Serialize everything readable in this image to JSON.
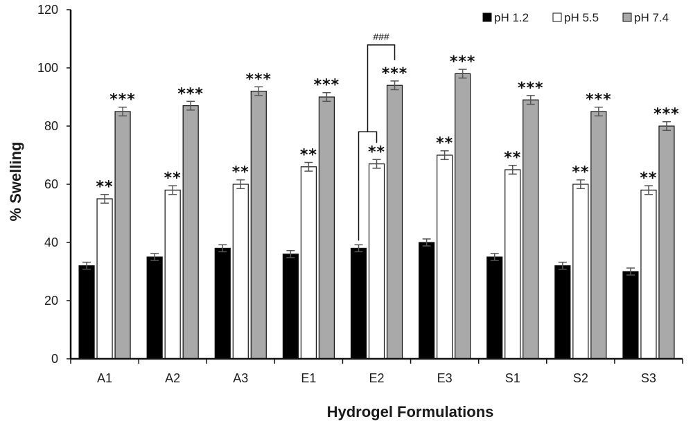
{
  "chart_data": {
    "type": "bar",
    "title": "",
    "xlabel": "Hydrogel Formulations",
    "ylabel": "% Swelling",
    "ylim": [
      0,
      120
    ],
    "yticks": [
      0,
      20,
      40,
      60,
      80,
      100,
      120
    ],
    "categories": [
      "A1",
      "A2",
      "A3",
      "E1",
      "E2",
      "E3",
      "S1",
      "S2",
      "S3"
    ],
    "legend_position": "top-right",
    "series": [
      {
        "name": "pH 1.2",
        "color": "#000000",
        "values": [
          32,
          35,
          38,
          36,
          38,
          40,
          35,
          32,
          30
        ],
        "errors": [
          1.2,
          1.2,
          1.2,
          1.2,
          1.2,
          1.2,
          1.2,
          1.2,
          1.2
        ]
      },
      {
        "name": "pH 5.5",
        "color": "#ffffff",
        "values": [
          55,
          58,
          60,
          66,
          67,
          70,
          65,
          60,
          58
        ],
        "errors": [
          1.5,
          1.5,
          1.5,
          1.5,
          1.5,
          1.5,
          1.5,
          1.5,
          1.5
        ],
        "annotation": "**"
      },
      {
        "name": "pH 7.4",
        "color": "#a9a9a9",
        "values": [
          85,
          87,
          92,
          90,
          94,
          98,
          89,
          85,
          80
        ],
        "errors": [
          1.5,
          1.5,
          1.5,
          1.5,
          1.5,
          1.5,
          1.5,
          1.5,
          1.5
        ],
        "annotation": "***"
      }
    ],
    "comparison": {
      "label": "###",
      "category": "E2",
      "series": [
        "pH 1.2",
        "pH 5.5",
        "pH 7.4"
      ]
    }
  }
}
